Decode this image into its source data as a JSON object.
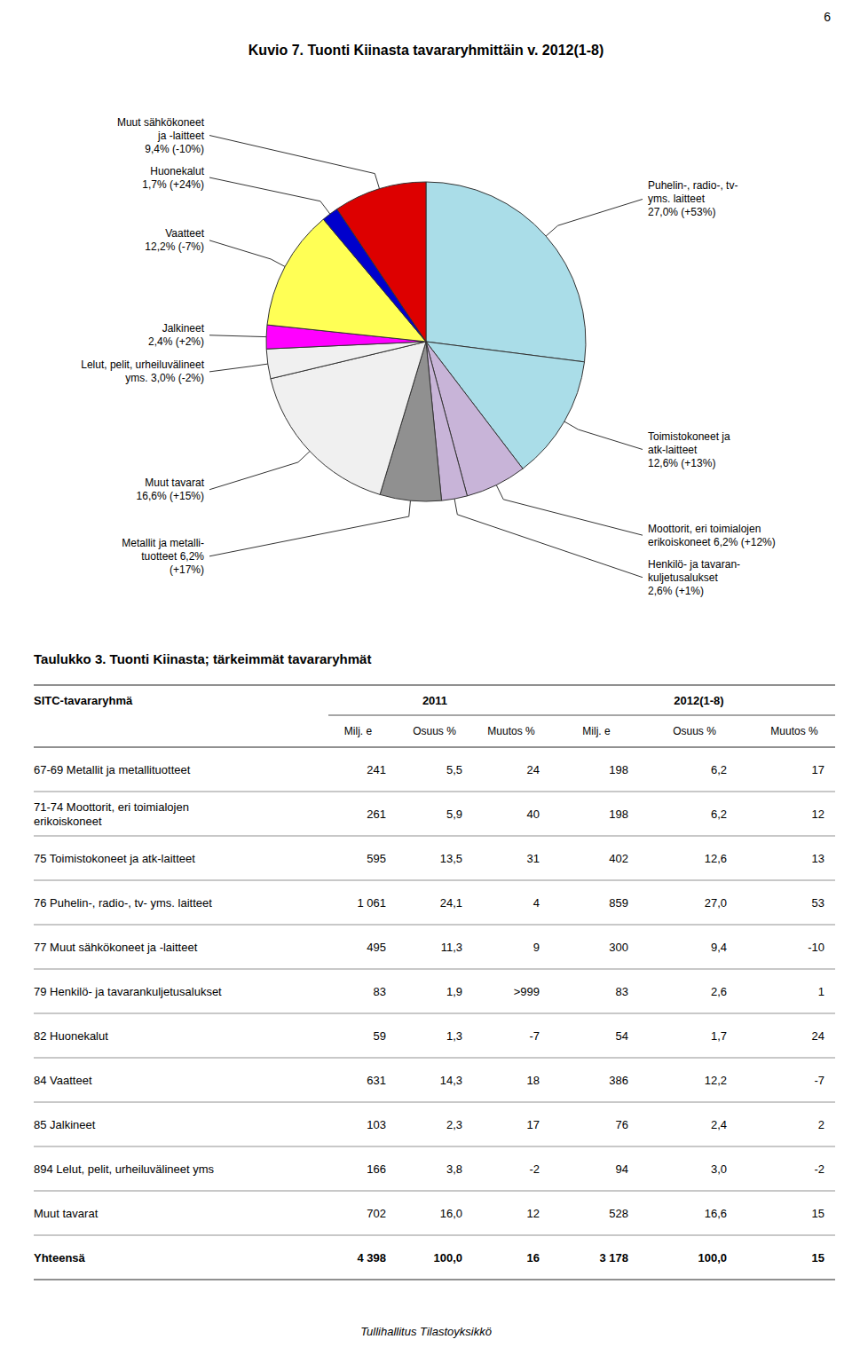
{
  "page_number": "6",
  "background_color": "#ffffff",
  "chart_data": {
    "type": "pie",
    "title": "Kuvio 7. Tuonti Kiinasta tavararyhmittäin v. 2012(1-8)",
    "categories": [
      "Puhelin-, radio-, tv-\nyms. laitteet\n27,0% (+53%)",
      "Toimistokoneet ja\natk-laitteet\n12,6% (+13%)",
      "Moottorit, eri toimialojen\nerikoiskoneet 6,2% (+12%)",
      "Henkilö- ja tavaran-\nkuljetusalukset\n2,6% (+1%)",
      "Metallit ja metalli-\ntuotteet 6,2%\n(+17%)",
      "Muut tavarat\n16,6% (+15%)",
      "Lelut, pelit, urheiluvälineet\nyms. 3,0% (-2%)",
      "Jalkineet\n2,4% (+2%)",
      "Vaatteet\n12,2% (-7%)",
      "Huonekalut\n1,7% (+24%)",
      "Muut sähkökoneet\nja -laitteet\n9,4% (-10%)"
    ],
    "values": [
      27.0,
      12.6,
      6.2,
      2.6,
      6.2,
      16.6,
      3.0,
      2.4,
      12.2,
      1.7,
      9.4
    ],
    "colors": [
      "#aadde8",
      "#aadde8",
      "#c8b4d8",
      "#c8b4d8",
      "#909090",
      "#f0f0f0",
      "#f0f0f0",
      "#ff00ff",
      "#ffff55",
      "#0000cc",
      "#dd0000"
    ]
  },
  "table": {
    "title": "Taulukko 3. Tuonti Kiinasta; tärkeimmät tavararyhmät",
    "header": [
      "SITC-tavararyhmä",
      "2011",
      "2012(1-8)"
    ],
    "subheader": [
      "Milj. e",
      "Osuus %",
      "Muutos %",
      "Milj. e",
      "Osuus %",
      "Muutos %"
    ],
    "rows": [
      [
        "67-69 Metallit ja metallituotteet",
        "241",
        "5,5",
        "24",
        "198",
        "6,2",
        "17"
      ],
      [
        "71-74 Moottorit, eri toimialojen\nerikoiskoneet",
        "261",
        "5,9",
        "40",
        "198",
        "6,2",
        "12"
      ],
      [
        "75 Toimistokoneet ja atk-laitteet",
        "595",
        "13,5",
        "31",
        "402",
        "12,6",
        "13"
      ],
      [
        "76 Puhelin-, radio-, tv- yms. laitteet",
        "1 061",
        "24,1",
        "4",
        "859",
        "27,0",
        "53"
      ],
      [
        "77 Muut sähkökoneet ja -laitteet",
        "495",
        "11,3",
        "9",
        "300",
        "9,4",
        "-10"
      ],
      [
        "79 Henkilö- ja tavarankuljetusalukset",
        "83",
        "1,9",
        ">999",
        "83",
        "2,6",
        "1"
      ],
      [
        "82 Huonekalut",
        "59",
        "1,3",
        "-7",
        "54",
        "1,7",
        "24"
      ],
      [
        "84 Vaatteet",
        "631",
        "14,3",
        "18",
        "386",
        "12,2",
        "-7"
      ],
      [
        "85 Jalkineet",
        "103",
        "2,3",
        "17",
        "76",
        "2,4",
        "2"
      ],
      [
        "894 Lelut, pelit, urheiluvälineet yms",
        "166",
        "3,8",
        "-2",
        "94",
        "3,0",
        "-2"
      ],
      [
        "Muut tavarat",
        "702",
        "16,0",
        "12",
        "528",
        "16,6",
        "15"
      ],
      [
        "Yhteensä",
        "4 398",
        "100,0",
        "16",
        "3 178",
        "100,0",
        "15"
      ]
    ]
  },
  "footer": "Tullihallitus Tilastoyksikkö"
}
